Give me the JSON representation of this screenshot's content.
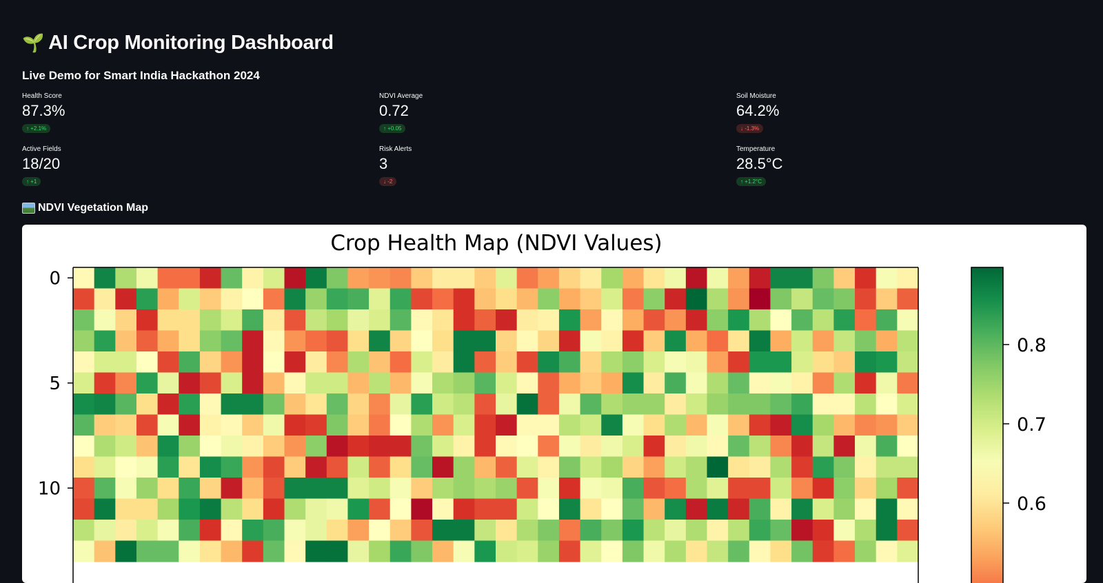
{
  "header": {
    "title_icon": "seedling-icon",
    "title": "AI Crop Monitoring Dashboard",
    "subtitle": "Live Demo for Smart India Hackathon 2024"
  },
  "metrics": [
    {
      "label": "Health Score",
      "value": "87.3%",
      "delta": "+2.1%",
      "direction": "up"
    },
    {
      "label": "NDVI Average",
      "value": "0.72",
      "delta": "+0.05",
      "direction": "up"
    },
    {
      "label": "Soil Moisture",
      "value": "64.2%",
      "delta": "-1.3%",
      "direction": "down"
    },
    {
      "label": "Active Fields",
      "value": "18/20",
      "delta": "+1",
      "direction": "up"
    },
    {
      "label": "Risk Alerts",
      "value": "3",
      "delta": "-2",
      "direction": "down"
    },
    {
      "label": "Temperature",
      "value": "28.5°C",
      "delta": "+1.2°C",
      "direction": "up"
    }
  ],
  "section": {
    "icon": "map-icon",
    "title": "NDVI Vegetation Map"
  },
  "colors": {
    "background": "#0e1117",
    "delta_up": "#3dd56d",
    "delta_down": "#ff6b6b"
  },
  "chart_data": {
    "type": "heatmap",
    "title": "Crop Health Map (NDVI Values)",
    "colormap": "RdYlGn",
    "cols": 40,
    "rows_visible": 14,
    "y_ticks": [
      "0",
      "5",
      "10"
    ],
    "colorbar_ticks": [
      "0.8",
      "0.7",
      "0.6"
    ],
    "value_range": [
      0.4,
      0.9
    ],
    "values": [
      [
        0.64,
        0.87,
        0.74,
        0.67,
        0.5,
        0.5,
        0.44,
        0.8,
        0.63,
        0.7,
        0.42,
        0.88,
        0.78,
        0.54,
        0.53,
        0.52,
        0.58,
        0.62,
        0.62,
        0.58,
        0.69,
        0.51,
        0.54,
        0.59,
        0.62,
        0.75,
        0.55,
        0.61,
        0.67,
        0.42,
        0.67,
        0.54,
        0.43,
        0.87,
        0.87,
        0.78,
        0.58,
        0.45,
        0.66,
        0.63
      ],
      [
        0.47,
        0.62,
        0.44,
        0.84,
        0.55,
        0.7,
        0.58,
        0.63,
        0.65,
        0.51,
        0.87,
        0.76,
        0.83,
        0.82,
        0.69,
        0.83,
        0.47,
        0.5,
        0.45,
        0.57,
        0.6,
        0.56,
        0.77,
        0.55,
        0.58,
        0.7,
        0.51,
        0.77,
        0.44,
        0.9,
        0.74,
        0.53,
        0.4,
        0.78,
        0.72,
        0.8,
        0.78,
        0.47,
        0.58,
        0.49
      ],
      [
        0.79,
        0.66,
        0.59,
        0.45,
        0.6,
        0.6,
        0.74,
        0.7,
        0.82,
        0.62,
        0.48,
        0.72,
        0.75,
        0.68,
        0.7,
        0.81,
        0.64,
        0.61,
        0.45,
        0.49,
        0.44,
        0.62,
        0.63,
        0.85,
        0.54,
        0.64,
        0.55,
        0.48,
        0.53,
        0.44,
        0.77,
        0.85,
        0.74,
        0.65,
        0.81,
        0.73,
        0.84,
        0.5,
        0.82,
        0.66
      ],
      [
        0.76,
        0.84,
        0.57,
        0.49,
        0.55,
        0.6,
        0.77,
        0.8,
        0.43,
        0.64,
        0.53,
        0.5,
        0.48,
        0.6,
        0.87,
        0.59,
        0.65,
        0.6,
        0.88,
        0.88,
        0.59,
        0.64,
        0.59,
        0.44,
        0.66,
        0.63,
        0.45,
        0.58,
        0.86,
        0.55,
        0.5,
        0.61,
        0.88,
        0.55,
        0.71,
        0.54,
        0.72,
        0.78,
        0.55,
        0.73
      ],
      [
        0.64,
        0.7,
        0.7,
        0.65,
        0.47,
        0.82,
        0.59,
        0.53,
        0.43,
        0.65,
        0.44,
        0.62,
        0.52,
        0.74,
        0.57,
        0.5,
        0.7,
        0.62,
        0.88,
        0.49,
        0.58,
        0.47,
        0.86,
        0.82,
        0.59,
        0.74,
        0.77,
        0.7,
        0.66,
        0.67,
        0.54,
        0.46,
        0.85,
        0.85,
        0.7,
        0.6,
        0.58,
        0.86,
        0.85,
        0.72
      ],
      [
        0.7,
        0.46,
        0.52,
        0.84,
        0.68,
        0.43,
        0.47,
        0.7,
        0.43,
        0.56,
        0.64,
        0.71,
        0.71,
        0.56,
        0.73,
        0.56,
        0.66,
        0.74,
        0.76,
        0.81,
        0.7,
        0.64,
        0.49,
        0.55,
        0.58,
        0.55,
        0.86,
        0.62,
        0.82,
        0.66,
        0.74,
        0.8,
        0.64,
        0.66,
        0.63,
        0.52,
        0.74,
        0.45,
        0.67,
        0.51
      ],
      [
        0.86,
        0.87,
        0.81,
        0.6,
        0.44,
        0.84,
        0.64,
        0.87,
        0.87,
        0.79,
        0.57,
        0.61,
        0.8,
        0.59,
        0.52,
        0.68,
        0.84,
        0.71,
        0.73,
        0.48,
        0.68,
        0.89,
        0.49,
        0.67,
        0.81,
        0.74,
        0.76,
        0.76,
        0.62,
        0.71,
        0.76,
        0.78,
        0.78,
        0.8,
        0.83,
        0.64,
        0.64,
        0.73,
        0.65,
        0.7
      ],
      [
        0.81,
        0.58,
        0.59,
        0.47,
        0.66,
        0.43,
        0.63,
        0.64,
        0.58,
        0.67,
        0.45,
        0.46,
        0.78,
        0.58,
        0.51,
        0.65,
        0.74,
        0.53,
        0.7,
        0.46,
        0.43,
        0.64,
        0.64,
        0.73,
        0.71,
        0.87,
        0.66,
        0.6,
        0.74,
        0.56,
        0.66,
        0.57,
        0.46,
        0.43,
        0.86,
        0.75,
        0.56,
        0.52,
        0.53,
        0.58
      ],
      [
        0.65,
        0.74,
        0.71,
        0.57,
        0.86,
        0.76,
        0.65,
        0.67,
        0.63,
        0.58,
        0.53,
        0.77,
        0.42,
        0.45,
        0.44,
        0.44,
        0.79,
        0.7,
        0.63,
        0.46,
        0.64,
        0.65,
        0.51,
        0.66,
        0.62,
        0.67,
        0.7,
        0.45,
        0.62,
        0.67,
        0.64,
        0.8,
        0.73,
        0.52,
        0.44,
        0.72,
        0.43,
        0.67,
        0.82,
        0.65
      ],
      [
        0.6,
        0.69,
        0.65,
        0.66,
        0.84,
        0.61,
        0.86,
        0.83,
        0.53,
        0.47,
        0.58,
        0.43,
        0.48,
        0.71,
        0.49,
        0.6,
        0.8,
        0.42,
        0.76,
        0.56,
        0.49,
        0.69,
        0.63,
        0.78,
        0.71,
        0.75,
        0.59,
        0.54,
        0.71,
        0.74,
        0.9,
        0.61,
        0.62,
        0.74,
        0.46,
        0.84,
        0.78,
        0.63,
        0.72,
        0.72
      ],
      [
        0.48,
        0.81,
        0.66,
        0.76,
        0.6,
        0.83,
        0.59,
        0.43,
        0.56,
        0.48,
        0.87,
        0.87,
        0.87,
        0.69,
        0.71,
        0.66,
        0.58,
        0.74,
        0.76,
        0.74,
        0.76,
        0.48,
        0.66,
        0.45,
        0.66,
        0.67,
        0.82,
        0.48,
        0.5,
        0.74,
        0.69,
        0.47,
        0.47,
        0.71,
        0.52,
        0.45,
        0.77,
        0.59,
        0.75,
        0.48
      ],
      [
        0.47,
        0.88,
        0.6,
        0.6,
        0.75,
        0.85,
        0.88,
        0.73,
        0.6,
        0.45,
        0.74,
        0.68,
        0.67,
        0.85,
        0.48,
        0.65,
        0.41,
        0.64,
        0.45,
        0.47,
        0.47,
        0.71,
        0.65,
        0.87,
        0.61,
        0.65,
        0.8,
        0.56,
        0.86,
        0.43,
        0.88,
        0.44,
        0.82,
        0.63,
        0.87,
        0.7,
        0.76,
        0.64,
        0.88,
        0.64
      ],
      [
        0.73,
        0.68,
        0.62,
        0.7,
        0.66,
        0.82,
        0.45,
        0.64,
        0.84,
        0.82,
        0.66,
        0.68,
        0.6,
        0.54,
        0.65,
        0.58,
        0.48,
        0.88,
        0.88,
        0.72,
        0.61,
        0.74,
        0.78,
        0.51,
        0.82,
        0.78,
        0.85,
        0.73,
        0.68,
        0.74,
        0.63,
        0.73,
        0.83,
        0.8,
        0.42,
        0.45,
        0.66,
        0.74,
        0.88,
        0.48
      ],
      [
        0.66,
        0.57,
        0.89,
        0.8,
        0.8,
        0.66,
        0.61,
        0.56,
        0.46,
        0.8,
        0.64,
        0.89,
        0.89,
        0.68,
        0.75,
        0.83,
        0.78,
        0.56,
        0.66,
        0.85,
        0.71,
        0.7,
        0.76,
        0.47,
        0.69,
        0.65,
        0.78,
        0.67,
        0.74,
        0.61,
        0.72,
        0.8,
        0.64,
        0.6,
        0.79,
        0.46,
        0.5,
        0.76,
        0.64,
        0.69
      ]
    ]
  }
}
